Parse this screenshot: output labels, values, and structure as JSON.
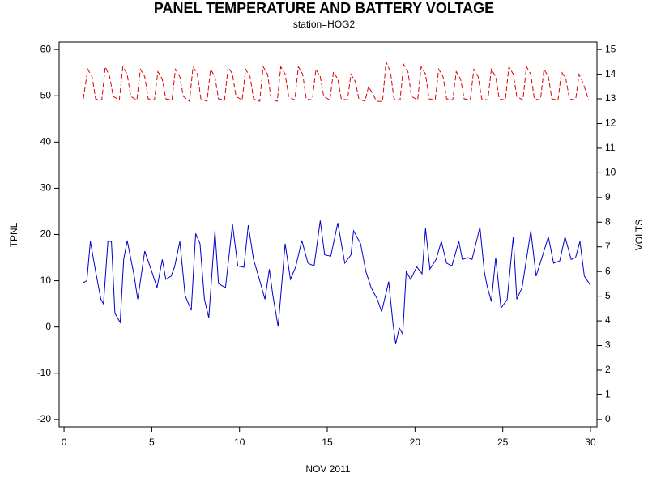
{
  "chart_data": {
    "type": "line",
    "title": "PANEL TEMPERATURE AND BATTERY VOLTAGE",
    "subtitle": "station=HOG2",
    "x_label": "NOV 2011",
    "y_label": "TPNL",
    "y2_label": "VOLTS",
    "xlim": [
      -0.28,
      30.37
    ],
    "xticks": [
      0,
      5,
      10,
      15,
      20,
      25,
      30
    ],
    "ylim": [
      -21.6,
      61.6
    ],
    "yticks": [
      -20,
      -10,
      0,
      10,
      20,
      30,
      40,
      50,
      60
    ],
    "y2lim": [
      -0.3,
      15.3
    ],
    "y2ticks": [
      0,
      1,
      2,
      3,
      4,
      5,
      6,
      7,
      8,
      9,
      10,
      11,
      12,
      13,
      14,
      15
    ],
    "series": [
      {
        "name": "TPNL",
        "color": "#0000cc",
        "axis": "y",
        "dashed": false,
        "x": [
          1.1,
          1.3,
          1.5,
          1.8,
          2.1,
          2.25,
          2.5,
          2.7,
          2.9,
          3.2,
          3.4,
          3.6,
          4.0,
          4.2,
          4.6,
          5.0,
          5.3,
          5.6,
          5.8,
          6.1,
          6.3,
          6.6,
          6.9,
          7.25,
          7.5,
          7.75,
          8.0,
          8.25,
          8.6,
          8.8,
          9.2,
          9.6,
          9.9,
          10.25,
          10.5,
          10.8,
          11.2,
          11.45,
          11.7,
          11.9,
          12.2,
          12.6,
          12.9,
          13.2,
          13.55,
          13.9,
          14.25,
          14.6,
          14.85,
          15.2,
          15.6,
          16.0,
          16.35,
          16.5,
          16.9,
          17.2,
          17.5,
          17.85,
          18.1,
          18.5,
          18.75,
          18.9,
          19.1,
          19.3,
          19.5,
          19.75,
          20.1,
          20.4,
          20.6,
          20.85,
          21.2,
          21.5,
          21.8,
          22.1,
          22.5,
          22.7,
          23.0,
          23.25,
          23.5,
          23.7,
          23.95,
          24.1,
          24.35,
          24.6,
          24.9,
          25.25,
          25.6,
          25.8,
          26.1,
          26.6,
          26.9,
          27.2,
          27.6,
          27.9,
          28.25,
          28.55,
          28.9,
          29.15,
          29.4,
          29.65,
          30.0
        ],
        "values": [
          9.6,
          10,
          18.5,
          12,
          6,
          5,
          18.5,
          18.5,
          3,
          1,
          14.6,
          18.7,
          11,
          6,
          16.4,
          12,
          8.5,
          14.6,
          10.3,
          11,
          13,
          18.5,
          6.8,
          3.6,
          20.2,
          18,
          6,
          2,
          20.8,
          9.4,
          8.5,
          22.2,
          13.2,
          12.9,
          22,
          14.6,
          9.4,
          6,
          12.5,
          6.8,
          0.1,
          18,
          10.3,
          13,
          18.7,
          13.8,
          13.2,
          23,
          15.6,
          15.3,
          22.5,
          13.8,
          15.6,
          20.8,
          18,
          12,
          8.5,
          6,
          3.3,
          9.8,
          0.6,
          -3.7,
          -0.2,
          -1.5,
          12,
          10.3,
          13,
          11.5,
          21.3,
          12.5,
          14.6,
          18.5,
          13.8,
          13.2,
          18.5,
          14.6,
          15,
          14.6,
          18.5,
          21.6,
          12,
          9,
          5.5,
          15,
          4.1,
          5.9,
          19.5,
          6,
          8.5,
          20.8,
          11,
          14.6,
          19.5,
          13.8,
          14.3,
          19.5,
          14.6,
          15,
          18.5,
          11,
          9
        ]
      },
      {
        "name": "VOLTS",
        "color": "#dd0000",
        "axis": "y2",
        "dashed": true,
        "x": [
          1.1,
          1.35,
          1.6,
          1.8,
          2.15,
          2.35,
          2.6,
          2.8,
          3.15,
          3.35,
          3.6,
          3.8,
          4.15,
          4.35,
          4.6,
          4.8,
          5.15,
          5.35,
          5.6,
          5.8,
          6.15,
          6.35,
          6.6,
          6.8,
          7.15,
          7.35,
          7.6,
          7.8,
          8.15,
          8.35,
          8.6,
          8.8,
          9.15,
          9.35,
          9.6,
          9.8,
          10.15,
          10.35,
          10.6,
          10.8,
          11.15,
          11.35,
          11.6,
          11.8,
          12.15,
          12.35,
          12.6,
          12.8,
          13.15,
          13.35,
          13.6,
          13.8,
          14.15,
          14.35,
          14.6,
          14.8,
          15.15,
          15.35,
          15.6,
          15.8,
          16.15,
          16.35,
          16.6,
          16.8,
          17.15,
          17.35,
          17.6,
          17.8,
          18.15,
          18.35,
          18.6,
          18.8,
          19.15,
          19.35,
          19.6,
          19.8,
          20.15,
          20.35,
          20.6,
          20.8,
          21.15,
          21.35,
          21.6,
          21.8,
          22.15,
          22.35,
          22.6,
          22.8,
          23.15,
          23.35,
          23.6,
          23.8,
          24.15,
          24.35,
          24.6,
          24.8,
          25.15,
          25.35,
          25.6,
          25.8,
          26.15,
          26.35,
          26.6,
          26.8,
          27.15,
          27.35,
          27.6,
          27.8,
          28.15,
          28.35,
          28.6,
          28.8,
          29.15,
          29.35,
          29.6,
          29.9
        ],
        "values": [
          13.0,
          14.2,
          13.9,
          13.0,
          12.95,
          14.3,
          13.9,
          13.1,
          12.95,
          14.3,
          14.0,
          13.1,
          12.95,
          14.2,
          13.9,
          13.0,
          12.95,
          14.1,
          13.8,
          13.0,
          12.95,
          14.2,
          13.9,
          13.1,
          12.9,
          14.3,
          14.0,
          13.0,
          12.9,
          14.2,
          13.9,
          13.0,
          12.95,
          14.3,
          14.0,
          13.1,
          12.95,
          14.2,
          13.9,
          13.0,
          12.9,
          14.3,
          14.0,
          13.0,
          12.9,
          14.3,
          14.0,
          13.1,
          12.95,
          14.3,
          14.0,
          13.0,
          12.95,
          14.2,
          13.9,
          13.1,
          12.95,
          14.1,
          13.8,
          13.0,
          12.95,
          14.0,
          13.7,
          13.0,
          12.9,
          13.5,
          13.2,
          12.9,
          12.9,
          14.5,
          14.1,
          13.0,
          12.95,
          14.4,
          14.1,
          13.1,
          12.95,
          14.3,
          14.0,
          13.0,
          12.95,
          14.2,
          13.9,
          13.0,
          12.95,
          14.1,
          13.8,
          13.0,
          12.95,
          14.2,
          13.9,
          13.0,
          12.95,
          14.2,
          13.9,
          13.0,
          12.95,
          14.3,
          14.0,
          13.1,
          12.95,
          14.3,
          14.0,
          13.0,
          12.95,
          14.2,
          13.9,
          13.0,
          12.95,
          14.1,
          13.8,
          13.0,
          12.95,
          14.0,
          13.6,
          12.95
        ]
      }
    ]
  }
}
